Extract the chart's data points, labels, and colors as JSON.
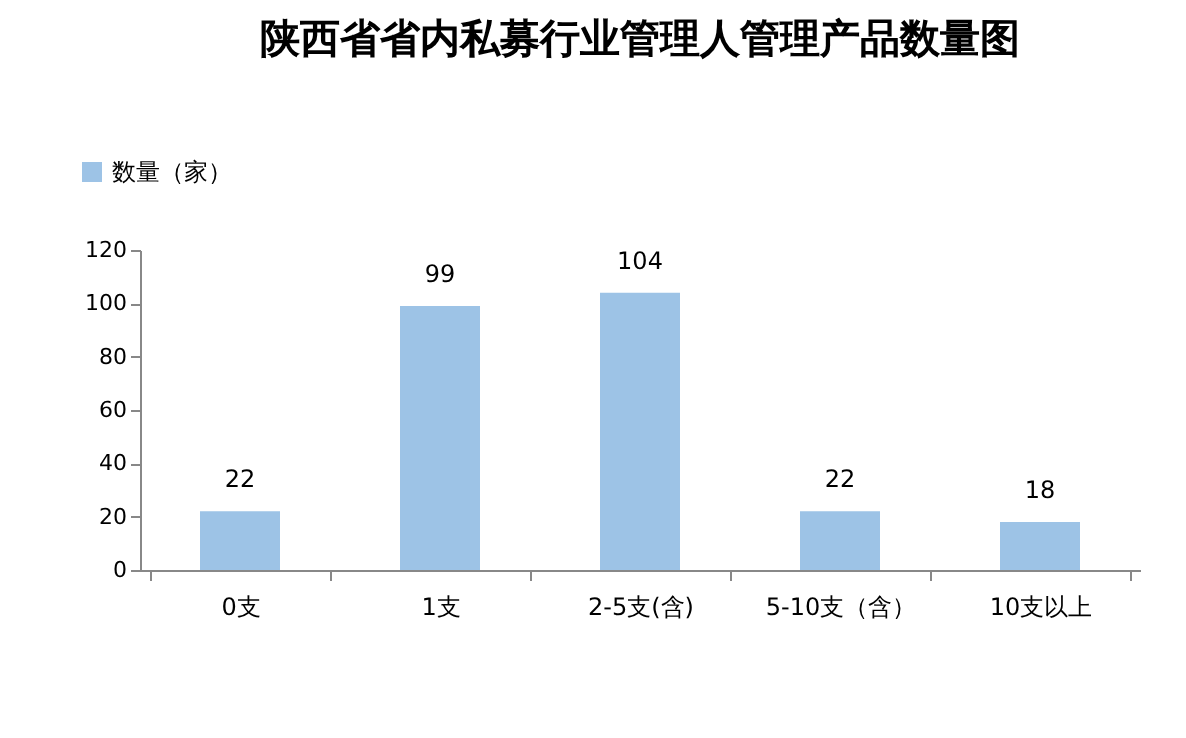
{
  "chart_data": {
    "type": "bar",
    "title": "陕西省省内私募行业管理人管理产品数量图",
    "categories": [
      "0支",
      "1支",
      "2-5支(含)",
      "5-10支（含）",
      "10支以上"
    ],
    "series": [
      {
        "name": "数量（家）",
        "color": "#9dc3e6",
        "values": [
          22,
          99,
          104,
          22,
          18
        ]
      }
    ],
    "ylim": [
      0,
      120
    ],
    "yticks": [
      0,
      20,
      40,
      60,
      80,
      100,
      120
    ],
    "data_labels": true,
    "grid": false,
    "legend": "top left"
  }
}
